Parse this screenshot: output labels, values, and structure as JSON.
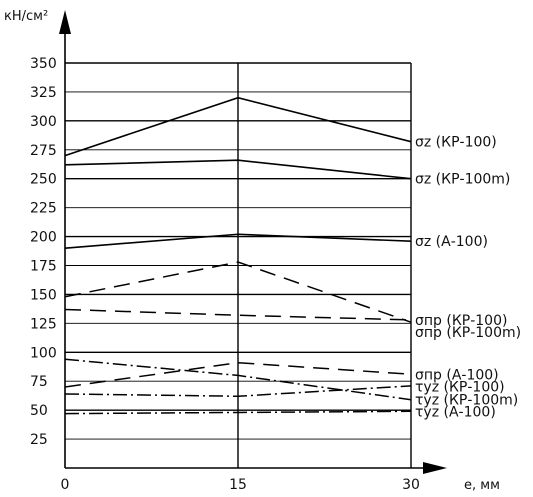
{
  "chart_data": {
    "type": "line",
    "ylabel": "кН/см²",
    "xlabel": "e, мм",
    "x": [
      0,
      15,
      30
    ],
    "xticks": [
      "0",
      "15",
      "30"
    ],
    "ylim": [
      0,
      350
    ],
    "yticks": [
      25,
      50,
      75,
      100,
      125,
      150,
      175,
      200,
      225,
      250,
      275,
      300,
      325,
      350
    ],
    "grid": true,
    "series": [
      {
        "name": "σz (КР-100)",
        "values": [
          270,
          320,
          282
        ],
        "style": "solid"
      },
      {
        "name": "σz (КР-100m)",
        "values": [
          262,
          266,
          250
        ],
        "style": "solid"
      },
      {
        "name": "σz (А-100)",
        "values": [
          190,
          202,
          196
        ],
        "style": "solid"
      },
      {
        "name": "σпр (КР-100m)",
        "values": [
          148,
          178,
          126
        ],
        "style": "dashed"
      },
      {
        "name": "σпр (КР-100)",
        "values": [
          137,
          132,
          128
        ],
        "style": "dashed"
      },
      {
        "name": "σпр (А-100)",
        "values": [
          70,
          91,
          81
        ],
        "style": "dashed"
      },
      {
        "name": "τyz (КР-100m)",
        "values": [
          94,
          80,
          59
        ],
        "style": "dashdot"
      },
      {
        "name": "τyz (КР-100)",
        "values": [
          64,
          62,
          71
        ],
        "style": "dashdot"
      },
      {
        "name": "τyz (А-100)",
        "values": [
          47,
          48,
          49
        ],
        "style": "dashdot"
      }
    ]
  }
}
